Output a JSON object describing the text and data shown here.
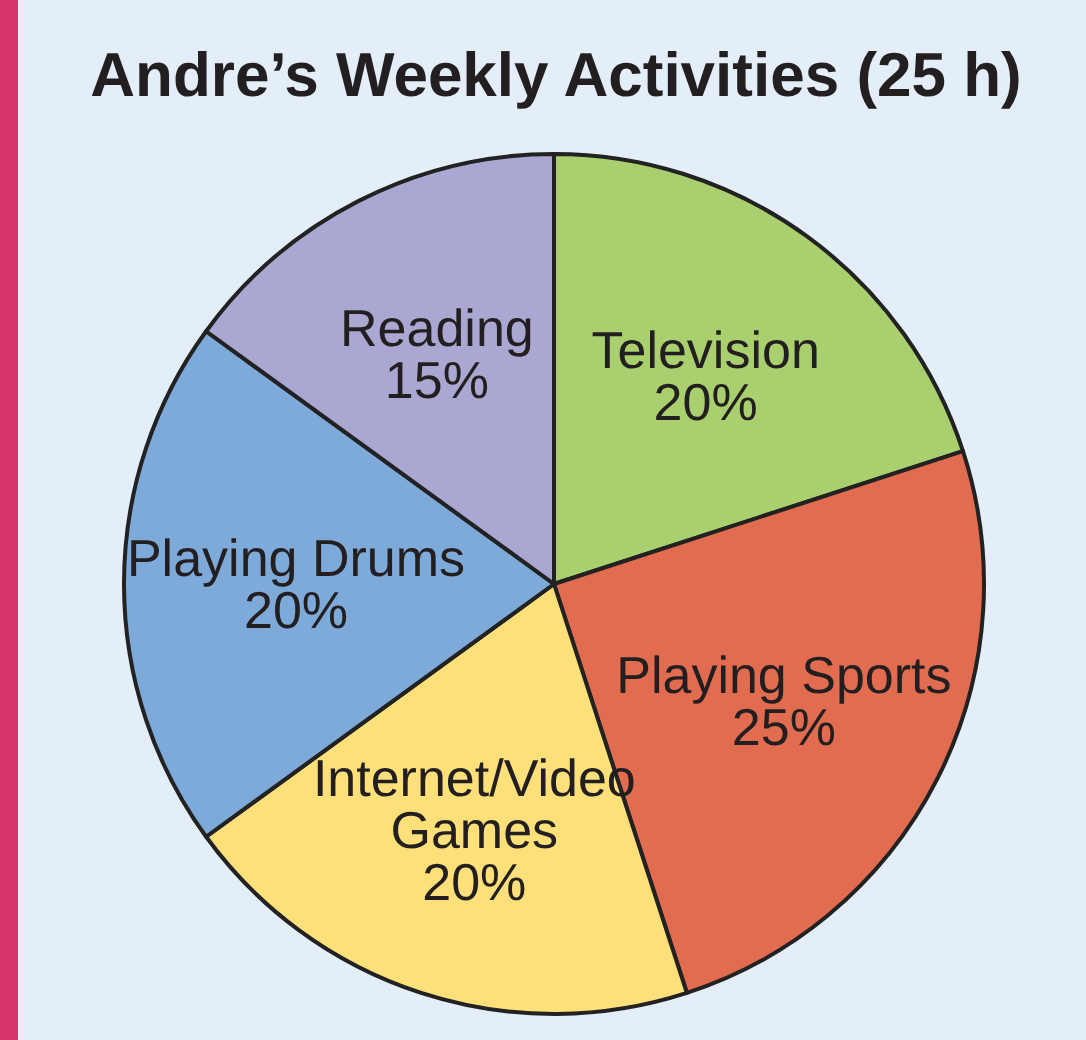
{
  "chart_data": {
    "type": "pie",
    "title": "Andre’s Weekly Activities (25 h)",
    "categories": [
      "Television",
      "Playing Sports",
      "Internet/Video Games",
      "Playing Drums",
      "Reading"
    ],
    "values": [
      20,
      25,
      20,
      20,
      15
    ],
    "value_labels": [
      "20%",
      "25%",
      "20%",
      "20%",
      "15%"
    ],
    "colors": [
      "#a9cf6e",
      "#e26c50",
      "#fde07a",
      "#7eaada",
      "#aba7d3"
    ]
  }
}
